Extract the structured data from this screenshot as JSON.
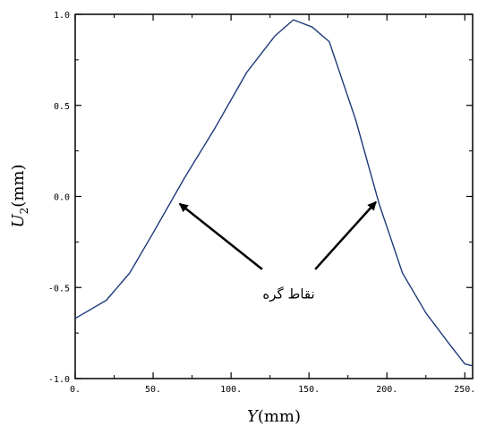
{
  "chart_data": {
    "type": "line",
    "xlabel": "Y(mm)",
    "ylabel": "U2(mm)",
    "ylabel_parts": {
      "base": "U",
      "sub": "2",
      "unit": "(mm)"
    },
    "xlim": [
      0,
      255
    ],
    "ylim": [
      -1.0,
      1.0
    ],
    "x_ticks": [
      0,
      50,
      100,
      150,
      200,
      250
    ],
    "x_tick_labels": [
      "0.",
      "50.",
      "100.",
      "150.",
      "200.",
      "250."
    ],
    "y_ticks": [
      -1.0,
      -0.5,
      0.0,
      0.5,
      1.0
    ],
    "y_tick_labels": [
      "-1.0",
      "-0.5",
      "0.0",
      "0.5",
      "1.0"
    ],
    "grid": false,
    "series": [
      {
        "color": "#1f3a7a",
        "x": [
          0,
          20,
          35,
          50,
          70,
          90,
          110,
          128,
          140,
          152,
          163,
          180,
          195,
          210,
          225,
          240,
          250,
          255
        ],
        "y": [
          -0.67,
          -0.57,
          -0.42,
          -0.2,
          0.1,
          0.38,
          0.68,
          0.88,
          0.97,
          0.93,
          0.85,
          0.42,
          -0.04,
          -0.42,
          -0.64,
          -0.81,
          -0.92,
          -0.93
        ]
      }
    ],
    "annotations": [
      {
        "text": "نقاط گره"
      }
    ],
    "arrows": [
      {
        "from": [
          120,
          -0.4
        ],
        "to": [
          67,
          -0.04
        ]
      },
      {
        "from": [
          154,
          -0.4
        ],
        "to": [
          193,
          -0.03
        ]
      }
    ]
  }
}
